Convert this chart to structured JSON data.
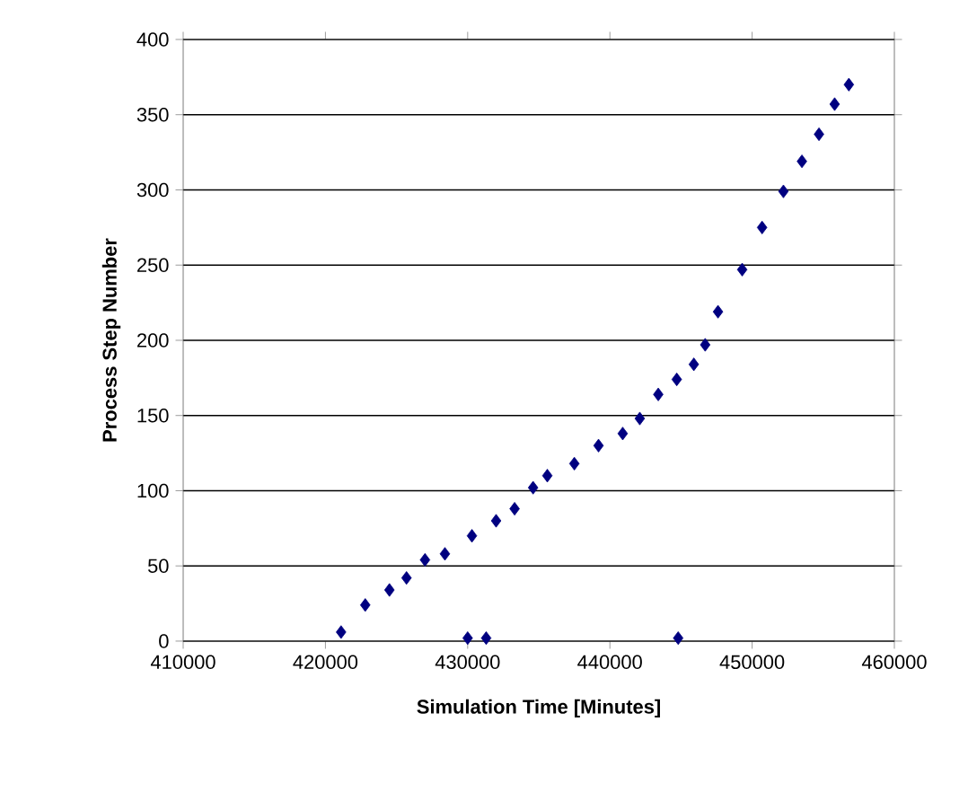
{
  "chart_data": {
    "type": "scatter",
    "xlabel": "Simulation Time [Minutes]",
    "ylabel": "Process Step Number",
    "x": [
      421100,
      422800,
      424500,
      425700,
      427000,
      428400,
      430300,
      432000,
      433300,
      434600,
      435600,
      437500,
      439200,
      440900,
      442100,
      443400,
      444700,
      445900,
      446700,
      447600,
      449300,
      450700,
      452200,
      453500,
      454700,
      455800,
      456800,
      430000,
      431300,
      444800
    ],
    "series": [
      {
        "color": "#000080",
        "values": [
          6,
          24,
          34,
          42,
          54,
          58,
          70,
          80,
          88,
          102,
          110,
          118,
          130,
          138,
          148,
          164,
          174,
          184,
          197,
          219,
          247,
          275,
          299,
          319,
          337,
          357,
          370,
          2,
          2,
          2
        ]
      }
    ],
    "xlim": [
      410000,
      460000
    ],
    "xticks": [
      410000,
      420000,
      430000,
      440000,
      450000,
      460000
    ],
    "ylim": [
      0,
      400
    ],
    "yticks": [
      0,
      50,
      100,
      150,
      200,
      250,
      300,
      350,
      400
    ],
    "grid": "y",
    "marker": "diamond"
  }
}
